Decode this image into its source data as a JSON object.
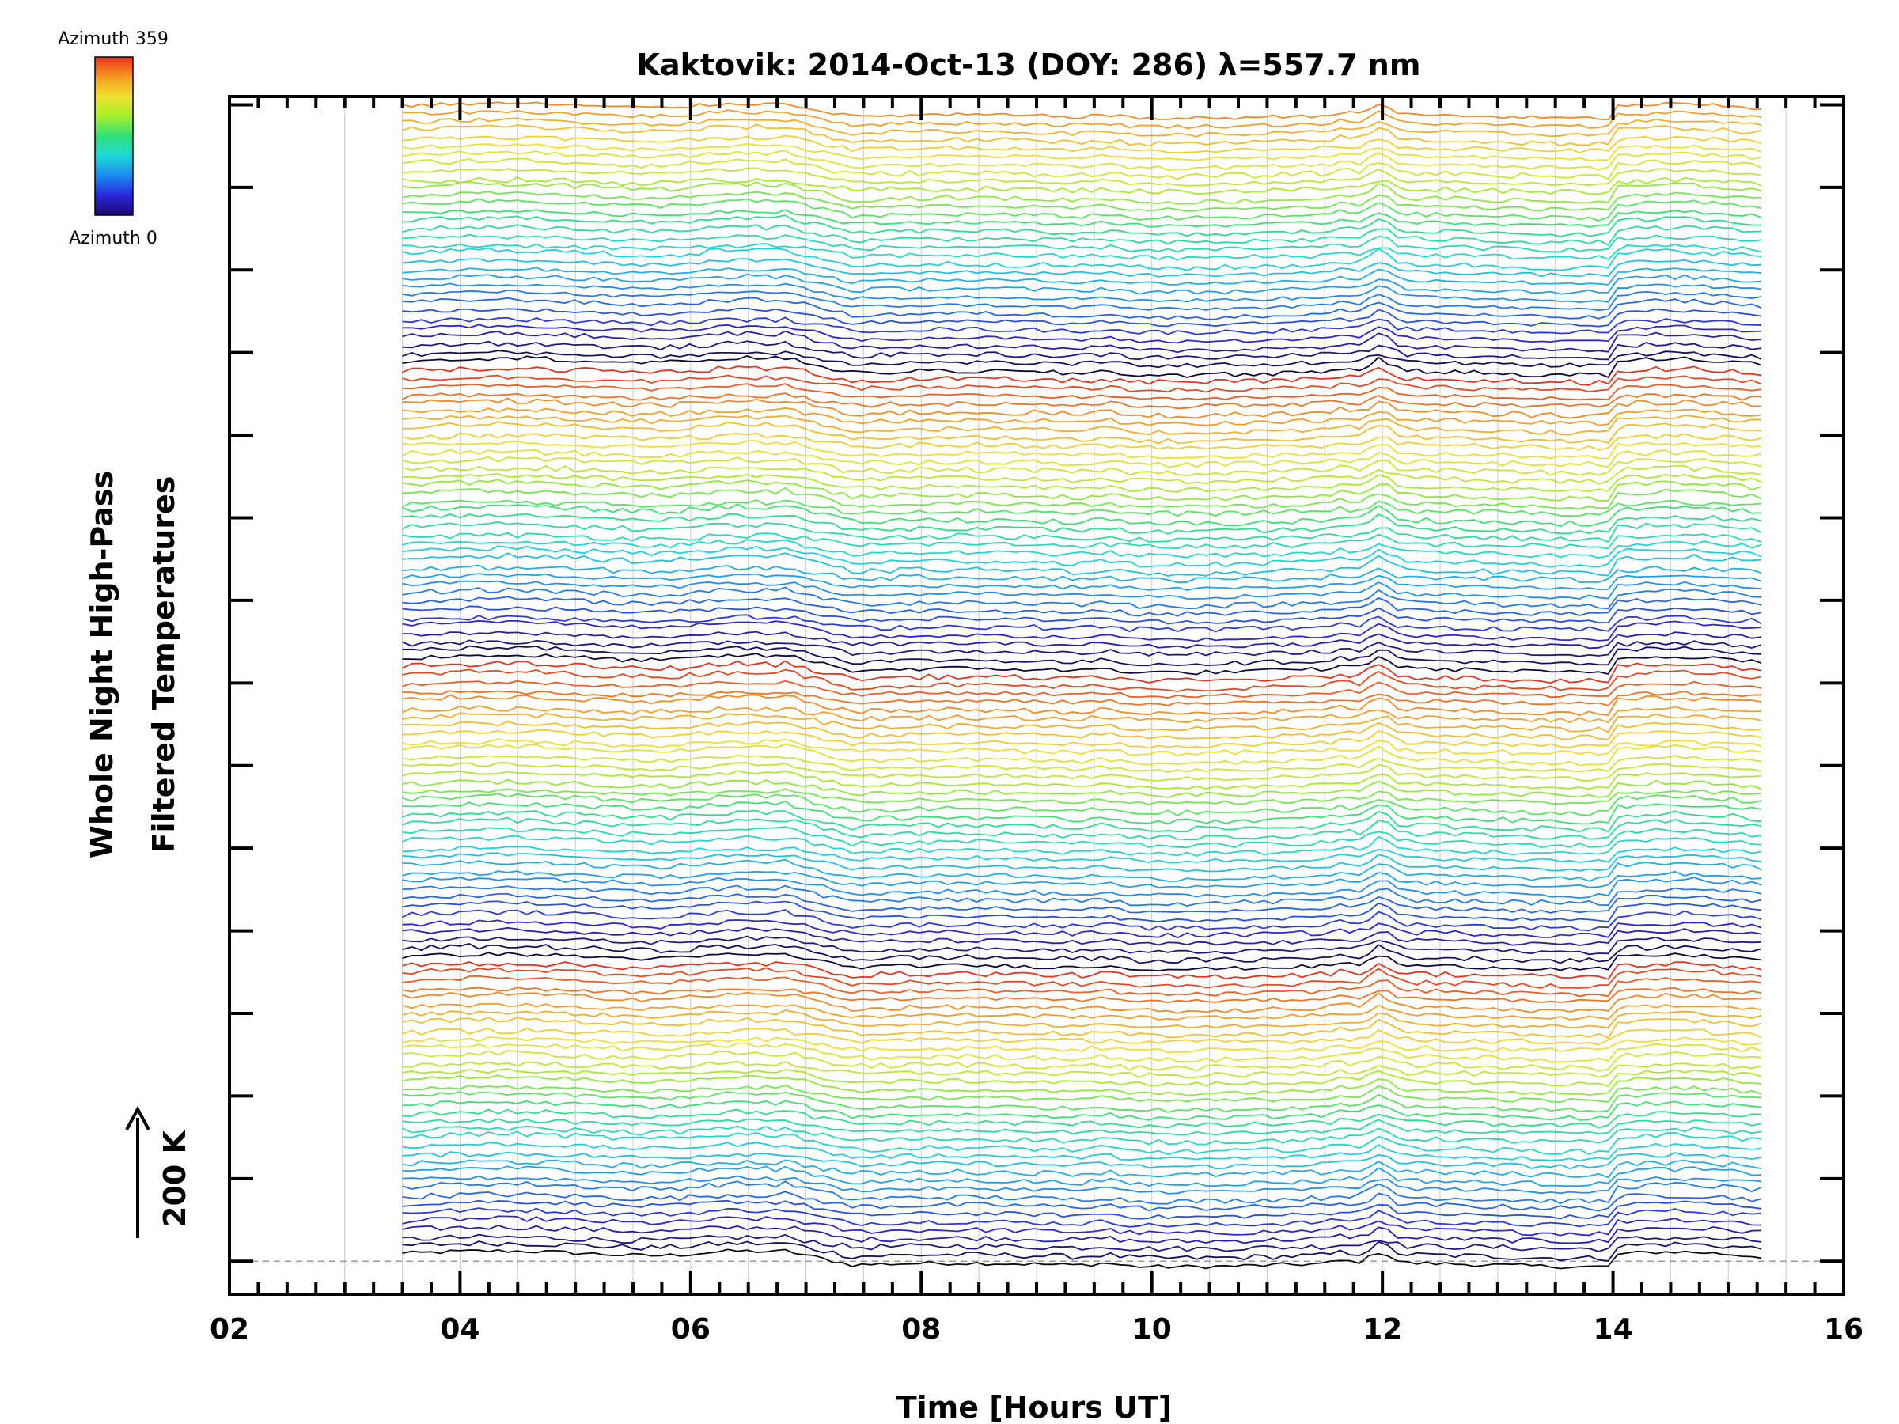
{
  "chart_data": {
    "type": "line",
    "title": "Kaktovik: 2014-Oct-13 (DOY: 286) λ=557.7 nm",
    "xlabel": "Time [Hours UT]",
    "ylabel_line1": "Whole Night High-Pass",
    "ylabel_line2": "Filtered Temperatures",
    "x_tick_labels": [
      "02",
      "04",
      "06",
      "08",
      "10",
      "12",
      "14",
      "16"
    ],
    "x_ticks": [
      2,
      4,
      6,
      8,
      10,
      12,
      14,
      16
    ],
    "xlim": [
      2,
      16
    ],
    "data_xrange": [
      3.5,
      15.3
    ],
    "ylim": [
      -80,
      2820
    ],
    "y_major_tick_spacing": 200,
    "scale_label": "200 K",
    "scale_value_k": 200,
    "trace_offset_k": 20,
    "num_traces": 140,
    "legend": {
      "top_label": "Azimuth 359",
      "bottom_label": "Azimuth 0",
      "colormap": "rainbow (blue at 0, green, yellow, red at 359)",
      "colors": [
        "#1a0a6e",
        "#2a28d8",
        "#1a8aef",
        "#1fd8d8",
        "#2fe07a",
        "#a6ef2a",
        "#f0e030",
        "#f59a20",
        "#e8321e"
      ]
    },
    "features": [
      {
        "time": 6.7,
        "description": "step drop at ~06:45 UT"
      },
      {
        "time": 11.98,
        "description": "sharp peak at ~12 UT"
      },
      {
        "time": 14.05,
        "description": "step rise at ~14:03 UT"
      }
    ]
  }
}
